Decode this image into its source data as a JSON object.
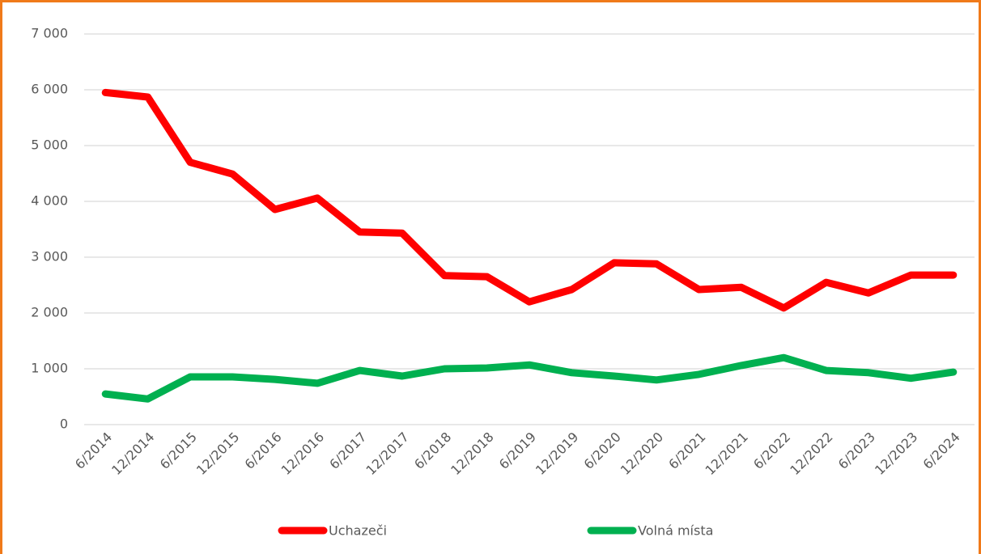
{
  "chart_data": {
    "type": "line",
    "categories": [
      "6/2014",
      "12/2014",
      "6/2015",
      "12/2015",
      "6/2016",
      "12/2016",
      "6/2017",
      "12/2017",
      "6/2018",
      "12/2018",
      "6/2019",
      "12/2019",
      "6/2020",
      "12/2020",
      "6/2021",
      "12/2021",
      "6/2022",
      "12/2022",
      "6/2023",
      "12/2023",
      "6/2024"
    ],
    "series": [
      {
        "name": "Uchazeči",
        "color": "#ff0000",
        "values": [
          5950,
          5870,
          4700,
          4490,
          3855,
          4060,
          3450,
          3430,
          2670,
          2650,
          2200,
          2420,
          2900,
          2880,
          2420,
          2460,
          2090,
          2550,
          2360,
          2680,
          2680
        ]
      },
      {
        "name": "Volná místa",
        "color": "#00b050",
        "values": [
          550,
          460,
          855,
          855,
          810,
          740,
          970,
          870,
          1000,
          1015,
          1070,
          930,
          870,
          800,
          900,
          1060,
          1200,
          970,
          930,
          830,
          940
        ]
      }
    ],
    "ylim": [
      0,
      7000
    ],
    "yticks": [
      0,
      {
        "value": 1000,
        "label": "1 000"
      },
      {
        "value": 2000,
        "label": "2 000"
      },
      {
        "value": 3000,
        "label": "3 000"
      },
      {
        "value": 4000,
        "label": "4 000"
      },
      {
        "value": 5000,
        "label": "5 000"
      },
      {
        "value": 6000,
        "label": "6 000"
      },
      {
        "value": 7000,
        "label": "7 000"
      }
    ],
    "grid": true,
    "legend": "bottom"
  }
}
